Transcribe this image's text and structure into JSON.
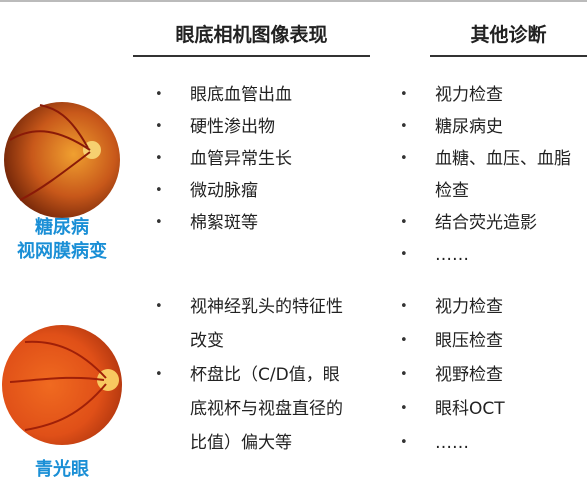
{
  "headers": {
    "findings": "眼底相机图像表现",
    "diagnosis": "其他诊断"
  },
  "rows": [
    {
      "label_lines": [
        "糖尿病",
        "视网膜病变"
      ],
      "findings": [
        "眼底血管出血",
        "硬性渗出物",
        "血管异常生长",
        "微动脉瘤",
        "棉絮斑等"
      ],
      "diagnosis": [
        "视力检查",
        "糖尿病史",
        "血糖、血压、血脂检查",
        "结合荧光造影",
        "……"
      ]
    },
    {
      "label_lines": [
        "青光眼"
      ],
      "findings": [
        "视神经乳头的特征性改变",
        "杯盘比（C/D值，眼底视杯与视盘直径的比值）偏大等"
      ],
      "diagnosis": [
        "视力检查",
        "眼压检查",
        "视野检查",
        "眼科OCT",
        "……"
      ]
    }
  ]
}
